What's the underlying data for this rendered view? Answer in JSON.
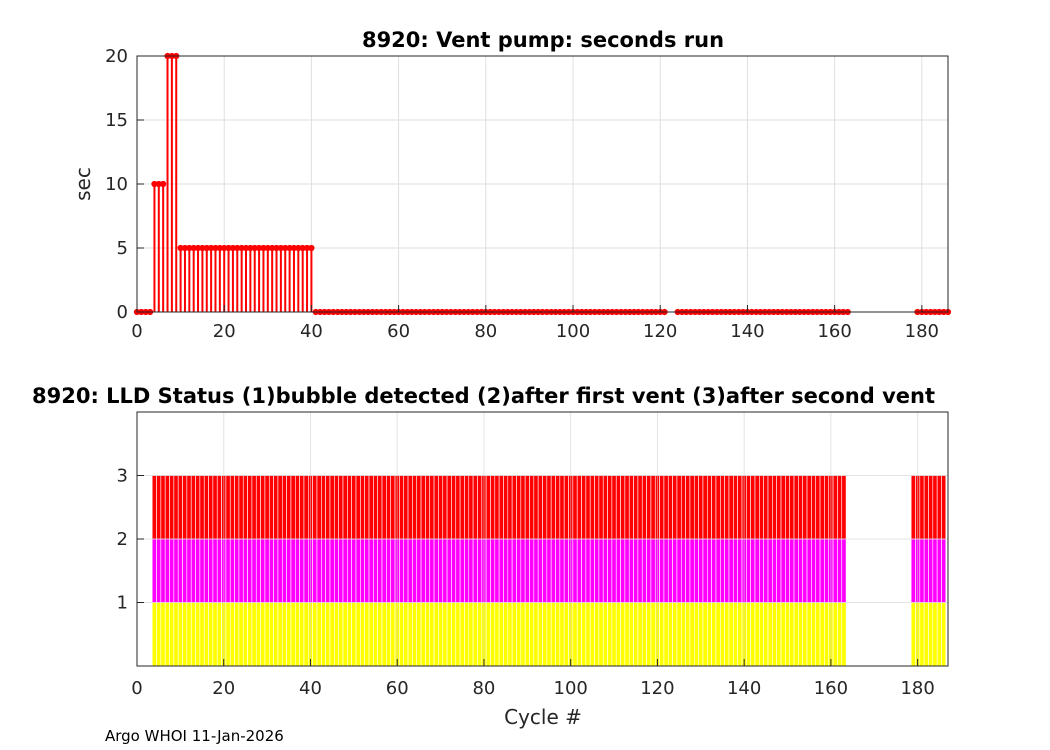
{
  "footer": "Argo WHOI 11-Jan-2026",
  "chart_data": [
    {
      "type": "stem",
      "title": "8920: Vent pump: seconds run",
      "xlabel": "",
      "ylabel": "sec",
      "xlim": [
        0,
        186
      ],
      "ylim": [
        0,
        20
      ],
      "xticks": [
        0,
        20,
        40,
        60,
        80,
        100,
        120,
        140,
        160,
        180
      ],
      "yticks": [
        0,
        5,
        10,
        15,
        20
      ],
      "grid": true,
      "color": "#ff0000",
      "segments": [
        {
          "from": 0,
          "to": 3,
          "value": 0
        },
        {
          "from": 4,
          "to": 6,
          "value": 10
        },
        {
          "from": 7,
          "to": 9,
          "value": 20
        },
        {
          "from": 10,
          "to": 40,
          "value": 5
        },
        {
          "from": 41,
          "to": 121,
          "value": 0
        },
        {
          "from": 124,
          "to": 163,
          "value": 0
        },
        {
          "from": 179,
          "to": 186,
          "value": 0
        }
      ]
    },
    {
      "type": "bar",
      "title": "8920: LLD Status   (1)bubble detected   (2)after first vent  (3)after second vent",
      "xlabel": "Cycle #",
      "ylabel": "",
      "xlim": [
        0,
        187
      ],
      "ylim": [
        0,
        4
      ],
      "xticks": [
        0,
        20,
        40,
        60,
        80,
        100,
        120,
        140,
        160,
        180
      ],
      "yticks": [
        1,
        2,
        3
      ],
      "grid": true,
      "level_colors": [
        "#ffff00",
        "#ff00ff",
        "#ff0000"
      ],
      "ranges": [
        {
          "from": 4,
          "to": 163,
          "status": 3
        },
        {
          "from": 179,
          "to": 186,
          "status": 3
        }
      ]
    }
  ]
}
